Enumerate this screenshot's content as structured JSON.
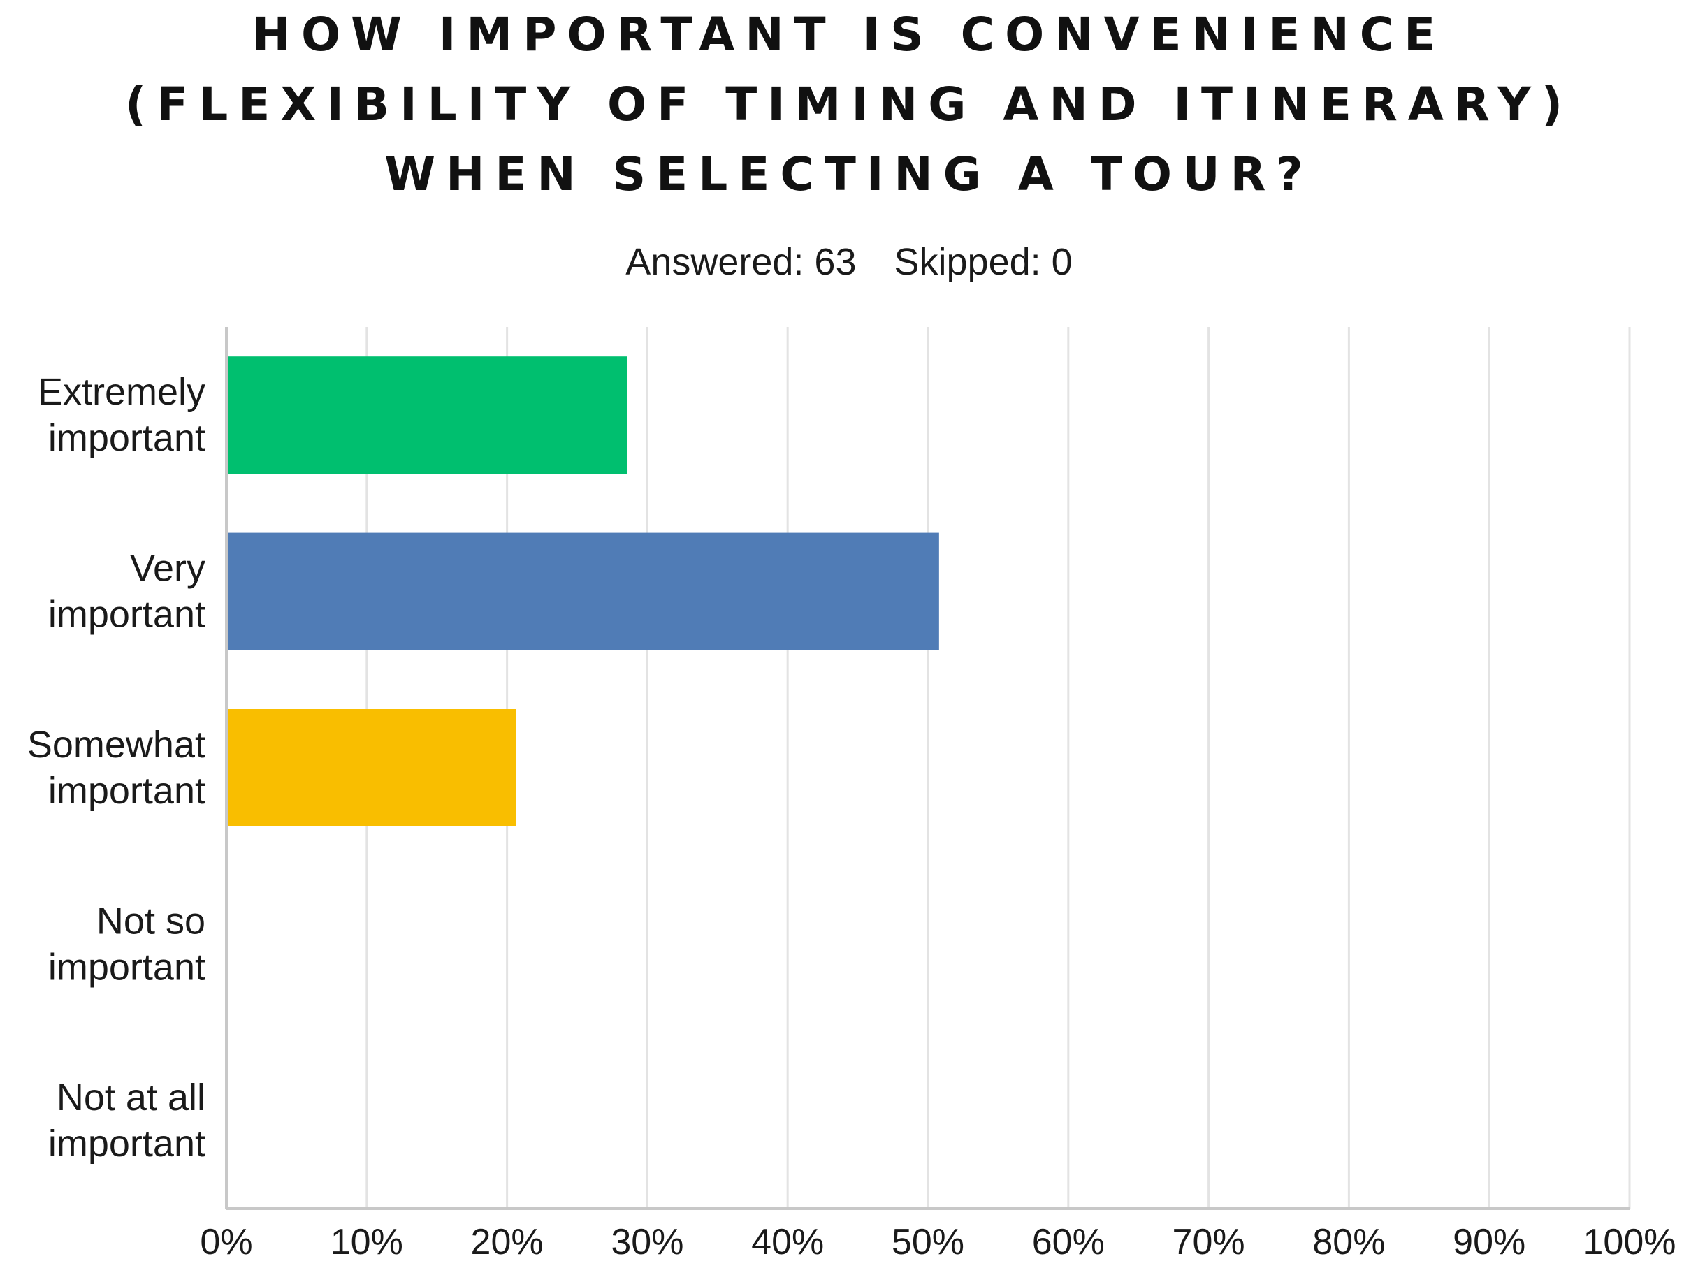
{
  "title_lines": [
    "HOW IMPORTANT IS CONVENIENCE",
    "(FLEXIBILITY OF TIMING AND ITINERARY)",
    "WHEN SELECTING A TOUR?"
  ],
  "stats": {
    "answered": "Answered: 63",
    "skipped": "Skipped: 0"
  },
  "chart_data": {
    "type": "bar",
    "orientation": "horizontal",
    "title": "HOW IMPORTANT IS CONVENIENCE (FLEXIBILITY OF TIMING AND ITINERARY) WHEN SELECTING A TOUR?",
    "categories": [
      [
        "Extremely",
        "important"
      ],
      [
        "Very",
        "important"
      ],
      [
        "Somewhat",
        "important"
      ],
      [
        "Not so",
        "important"
      ],
      [
        "Not at all",
        "important"
      ]
    ],
    "values": [
      28.57,
      50.79,
      20.63,
      0,
      0
    ],
    "colors": [
      "#00BF6F",
      "#507CB6",
      "#F9BE00",
      "#6BC8CD",
      "#8D9CA4"
    ],
    "xlim": [
      0,
      100
    ],
    "xticks": [
      "0%",
      "10%",
      "20%",
      "30%",
      "40%",
      "50%",
      "60%",
      "70%",
      "80%",
      "90%",
      "100%"
    ],
    "grid": true,
    "legend": "none"
  }
}
